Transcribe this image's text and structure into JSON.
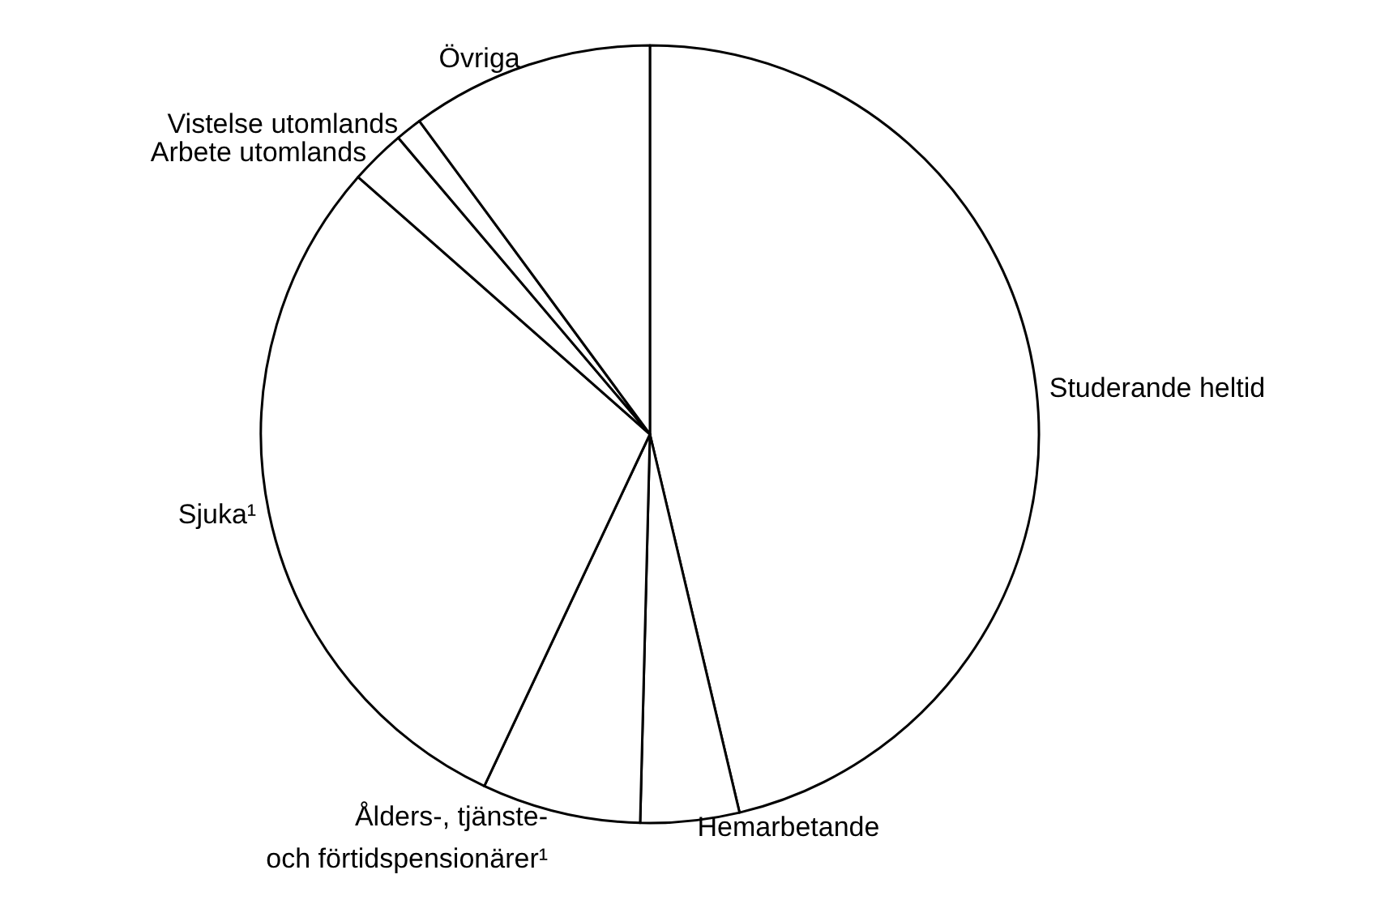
{
  "chart_data": {
    "type": "pie",
    "categories": [
      "Studerande heltid",
      "Hemarbetande",
      "Ålders-, tjänste-\noch förtidspensionärer¹",
      "Sjuka¹",
      "Arbete utomlands",
      "Vistelse utomlands",
      "Övriga"
    ],
    "values": [
      46.3,
      4.1,
      6.6,
      29.5,
      2.3,
      1.1,
      10.1
    ],
    "colors": [
      "#ffffff",
      "#ffffff",
      "#ffffff",
      "#ffffff",
      "#ffffff",
      "#ffffff",
      "#ffffff"
    ],
    "legend": false
  }
}
